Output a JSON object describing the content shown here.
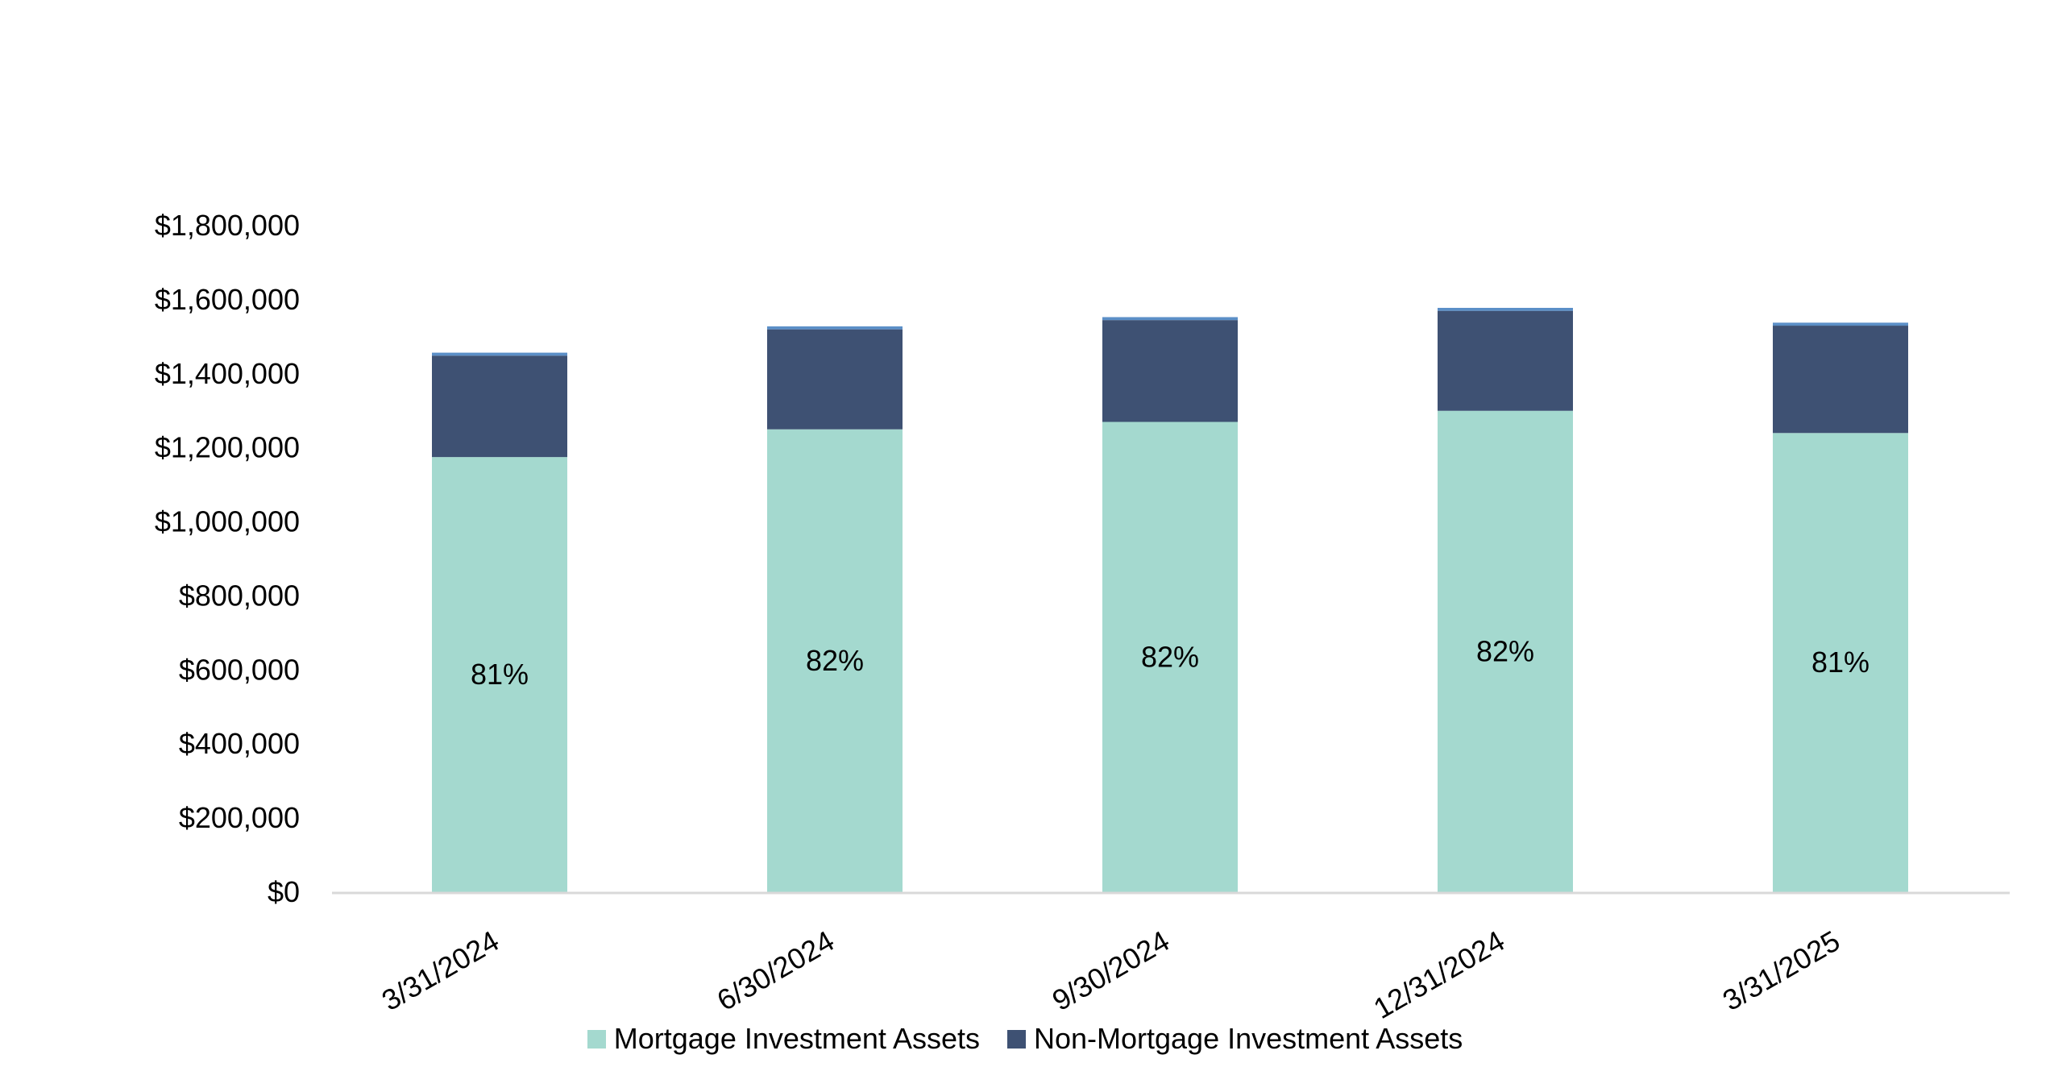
{
  "chart_data": {
    "type": "bar",
    "stacked": true,
    "categories": [
      "3/31/2024",
      "6/30/2024",
      "9/30/2024",
      "12/31/2024",
      "3/31/2025"
    ],
    "series": [
      {
        "name": "Mortgage Investment Assets",
        "color": "#a4d9cf",
        "values": [
          1175000,
          1250000,
          1270000,
          1300000,
          1240000
        ],
        "labels": [
          "81%",
          "82%",
          "82%",
          "82%",
          "81%"
        ]
      },
      {
        "name": "Non-Mortgage Investment Assets",
        "color": "#3e5173",
        "values": [
          274000,
          270000,
          275000,
          270000,
          290000
        ]
      },
      {
        "color": "#5b8fc7",
        "values": [
          8000,
          8000,
          8000,
          8000,
          8000
        ]
      }
    ],
    "yticks": [
      "$0",
      "$200,000",
      "$400,000",
      "$600,000",
      "$800,000",
      "$1,000,000",
      "$1,200,000",
      "$1,400,000",
      "$1,600,000",
      "$1,800,000"
    ],
    "ylim": [
      0,
      1800000
    ],
    "title": "",
    "xlabel": "",
    "ylabel": "",
    "grid": false,
    "legend_position": "bottom-center",
    "axis_color": "#d9d9d9"
  }
}
